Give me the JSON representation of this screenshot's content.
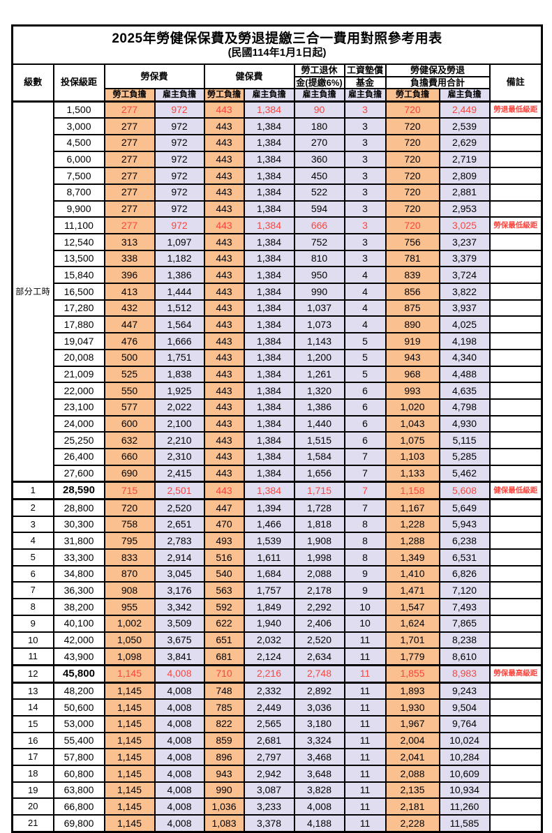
{
  "page": {
    "title_line1": "2025年勞健保保費及勞退提繳三合一費用對照參考用表",
    "title_line2": "(民國114年1月1日起)"
  },
  "table": {
    "headers": {
      "level": "級數",
      "bracket": "投保級距",
      "labor_fee": "勞保費",
      "health_fee": "健保費",
      "pension_line1": "勞工退休",
      "pension_line2": "金(提繳6%)",
      "wage_fund_line1": "工資墊償",
      "wage_fund_line2": "基金",
      "total_line1": "勞健保及勞退",
      "total_line2": "負擔費用合計",
      "remark": "備註",
      "worker": "勞工負擔",
      "employer": "雇主負擔"
    },
    "part_time_group": {
      "label": "部分工時",
      "row_span": 23
    },
    "legend_colors": {
      "worker_bg": "#FAC090",
      "employer_bg": "#E0DDF0",
      "highlight_red": "#F8463E",
      "grid": "#000000"
    },
    "rows": [
      {
        "level": "",
        "bracket": "1,500",
        "values": [
          "277",
          "972",
          "443",
          "1,384",
          "90",
          "3",
          "720",
          "2,449"
        ],
        "remark": "勞退最低級距",
        "highlight": true,
        "emphasis": false
      },
      {
        "level": "",
        "bracket": "3,000",
        "values": [
          "277",
          "972",
          "443",
          "1,384",
          "180",
          "3",
          "720",
          "2,539"
        ],
        "remark": "",
        "highlight": false,
        "emphasis": false
      },
      {
        "level": "",
        "bracket": "4,500",
        "values": [
          "277",
          "972",
          "443",
          "1,384",
          "270",
          "3",
          "720",
          "2,629"
        ],
        "remark": "",
        "highlight": false,
        "emphasis": false
      },
      {
        "level": "",
        "bracket": "6,000",
        "values": [
          "277",
          "972",
          "443",
          "1,384",
          "360",
          "3",
          "720",
          "2,719"
        ],
        "remark": "",
        "highlight": false,
        "emphasis": false
      },
      {
        "level": "",
        "bracket": "7,500",
        "values": [
          "277",
          "972",
          "443",
          "1,384",
          "450",
          "3",
          "720",
          "2,809"
        ],
        "remark": "",
        "highlight": false,
        "emphasis": false
      },
      {
        "level": "",
        "bracket": "8,700",
        "values": [
          "277",
          "972",
          "443",
          "1,384",
          "522",
          "3",
          "720",
          "2,881"
        ],
        "remark": "",
        "highlight": false,
        "emphasis": false
      },
      {
        "level": "",
        "bracket": "9,900",
        "values": [
          "277",
          "972",
          "443",
          "1,384",
          "594",
          "3",
          "720",
          "2,953"
        ],
        "remark": "",
        "highlight": false,
        "emphasis": false
      },
      {
        "level": "",
        "bracket": "11,100",
        "values": [
          "277",
          "972",
          "443",
          "1,384",
          "666",
          "3",
          "720",
          "3,025"
        ],
        "remark": "勞保最低級距",
        "highlight": true,
        "emphasis": false
      },
      {
        "level": "",
        "bracket": "12,540",
        "values": [
          "313",
          "1,097",
          "443",
          "1,384",
          "752",
          "3",
          "756",
          "3,237"
        ],
        "remark": "",
        "highlight": false,
        "emphasis": false
      },
      {
        "level": "",
        "bracket": "13,500",
        "values": [
          "338",
          "1,182",
          "443",
          "1,384",
          "810",
          "3",
          "781",
          "3,379"
        ],
        "remark": "",
        "highlight": false,
        "emphasis": false
      },
      {
        "level": "",
        "bracket": "15,840",
        "values": [
          "396",
          "1,386",
          "443",
          "1,384",
          "950",
          "4",
          "839",
          "3,724"
        ],
        "remark": "",
        "highlight": false,
        "emphasis": false
      },
      {
        "level": "",
        "bracket": "16,500",
        "values": [
          "413",
          "1,444",
          "443",
          "1,384",
          "990",
          "4",
          "856",
          "3,822"
        ],
        "remark": "",
        "highlight": false,
        "emphasis": false
      },
      {
        "level": "",
        "bracket": "17,280",
        "values": [
          "432",
          "1,512",
          "443",
          "1,384",
          "1,037",
          "4",
          "875",
          "3,937"
        ],
        "remark": "",
        "highlight": false,
        "emphasis": false
      },
      {
        "level": "",
        "bracket": "17,880",
        "values": [
          "447",
          "1,564",
          "443",
          "1,384",
          "1,073",
          "4",
          "890",
          "4,025"
        ],
        "remark": "",
        "highlight": false,
        "emphasis": false
      },
      {
        "level": "",
        "bracket": "19,047",
        "values": [
          "476",
          "1,666",
          "443",
          "1,384",
          "1,143",
          "5",
          "919",
          "4,198"
        ],
        "remark": "",
        "highlight": false,
        "emphasis": false
      },
      {
        "level": "",
        "bracket": "20,008",
        "values": [
          "500",
          "1,751",
          "443",
          "1,384",
          "1,200",
          "5",
          "943",
          "4,340"
        ],
        "remark": "",
        "highlight": false,
        "emphasis": false
      },
      {
        "level": "",
        "bracket": "21,009",
        "values": [
          "525",
          "1,838",
          "443",
          "1,384",
          "1,261",
          "5",
          "968",
          "4,488"
        ],
        "remark": "",
        "highlight": false,
        "emphasis": false
      },
      {
        "level": "",
        "bracket": "22,000",
        "values": [
          "550",
          "1,925",
          "443",
          "1,384",
          "1,320",
          "6",
          "993",
          "4,635"
        ],
        "remark": "",
        "highlight": false,
        "emphasis": false
      },
      {
        "level": "",
        "bracket": "23,100",
        "values": [
          "577",
          "2,022",
          "443",
          "1,384",
          "1,386",
          "6",
          "1,020",
          "4,798"
        ],
        "remark": "",
        "highlight": false,
        "emphasis": false
      },
      {
        "level": "",
        "bracket": "24,000",
        "values": [
          "600",
          "2,100",
          "443",
          "1,384",
          "1,440",
          "6",
          "1,043",
          "4,930"
        ],
        "remark": "",
        "highlight": false,
        "emphasis": false
      },
      {
        "level": "",
        "bracket": "25,250",
        "values": [
          "632",
          "2,210",
          "443",
          "1,384",
          "1,515",
          "6",
          "1,075",
          "5,115"
        ],
        "remark": "",
        "highlight": false,
        "emphasis": false
      },
      {
        "level": "",
        "bracket": "26,400",
        "values": [
          "660",
          "2,310",
          "443",
          "1,384",
          "1,584",
          "7",
          "1,103",
          "5,285"
        ],
        "remark": "",
        "highlight": false,
        "emphasis": false
      },
      {
        "level": "",
        "bracket": "27,600",
        "values": [
          "690",
          "2,415",
          "443",
          "1,384",
          "1,656",
          "7",
          "1,133",
          "5,462"
        ],
        "remark": "",
        "highlight": false,
        "emphasis": false
      },
      {
        "level": "1",
        "bracket": "28,590",
        "values": [
          "715",
          "2,501",
          "443",
          "1,384",
          "1,715",
          "7",
          "1,158",
          "5,608"
        ],
        "remark": "健保最低級距",
        "highlight": true,
        "emphasis": true
      },
      {
        "level": "2",
        "bracket": "28,800",
        "values": [
          "720",
          "2,520",
          "447",
          "1,394",
          "1,728",
          "7",
          "1,167",
          "5,649"
        ],
        "remark": "",
        "highlight": false,
        "emphasis": false
      },
      {
        "level": "3",
        "bracket": "30,300",
        "values": [
          "758",
          "2,651",
          "470",
          "1,466",
          "1,818",
          "8",
          "1,228",
          "5,943"
        ],
        "remark": "",
        "highlight": false,
        "emphasis": false
      },
      {
        "level": "4",
        "bracket": "31,800",
        "values": [
          "795",
          "2,783",
          "493",
          "1,539",
          "1,908",
          "8",
          "1,288",
          "6,238"
        ],
        "remark": "",
        "highlight": false,
        "emphasis": false
      },
      {
        "level": "5",
        "bracket": "33,300",
        "values": [
          "833",
          "2,914",
          "516",
          "1,611",
          "1,998",
          "8",
          "1,349",
          "6,531"
        ],
        "remark": "",
        "highlight": false,
        "emphasis": false
      },
      {
        "level": "6",
        "bracket": "34,800",
        "values": [
          "870",
          "3,045",
          "540",
          "1,684",
          "2,088",
          "9",
          "1,410",
          "6,826"
        ],
        "remark": "",
        "highlight": false,
        "emphasis": false
      },
      {
        "level": "7",
        "bracket": "36,300",
        "values": [
          "908",
          "3,176",
          "563",
          "1,757",
          "2,178",
          "9",
          "1,471",
          "7,120"
        ],
        "remark": "",
        "highlight": false,
        "emphasis": false
      },
      {
        "level": "8",
        "bracket": "38,200",
        "values": [
          "955",
          "3,342",
          "592",
          "1,849",
          "2,292",
          "10",
          "1,547",
          "7,493"
        ],
        "remark": "",
        "highlight": false,
        "emphasis": false
      },
      {
        "level": "9",
        "bracket": "40,100",
        "values": [
          "1,002",
          "3,509",
          "622",
          "1,940",
          "2,406",
          "10",
          "1,624",
          "7,865"
        ],
        "remark": "",
        "highlight": false,
        "emphasis": false
      },
      {
        "level": "10",
        "bracket": "42,000",
        "values": [
          "1,050",
          "3,675",
          "651",
          "2,032",
          "2,520",
          "11",
          "1,701",
          "8,238"
        ],
        "remark": "",
        "highlight": false,
        "emphasis": false
      },
      {
        "level": "11",
        "bracket": "43,900",
        "values": [
          "1,098",
          "3,841",
          "681",
          "2,124",
          "2,634",
          "11",
          "1,779",
          "8,610"
        ],
        "remark": "",
        "highlight": false,
        "emphasis": false
      },
      {
        "level": "12",
        "bracket": "45,800",
        "values": [
          "1,145",
          "4,008",
          "710",
          "2,216",
          "2,748",
          "11",
          "1,855",
          "8,983"
        ],
        "remark": "勞保最高級距",
        "highlight": true,
        "emphasis": true
      },
      {
        "level": "13",
        "bracket": "48,200",
        "values": [
          "1,145",
          "4,008",
          "748",
          "2,332",
          "2,892",
          "11",
          "1,893",
          "9,243"
        ],
        "remark": "",
        "highlight": false,
        "emphasis": false
      },
      {
        "level": "14",
        "bracket": "50,600",
        "values": [
          "1,145",
          "4,008",
          "785",
          "2,449",
          "3,036",
          "11",
          "1,930",
          "9,504"
        ],
        "remark": "",
        "highlight": false,
        "emphasis": false
      },
      {
        "level": "15",
        "bracket": "53,000",
        "values": [
          "1,145",
          "4,008",
          "822",
          "2,565",
          "3,180",
          "11",
          "1,967",
          "9,764"
        ],
        "remark": "",
        "highlight": false,
        "emphasis": false
      },
      {
        "level": "16",
        "bracket": "55,400",
        "values": [
          "1,145",
          "4,008",
          "859",
          "2,681",
          "3,324",
          "11",
          "2,004",
          "10,024"
        ],
        "remark": "",
        "highlight": false,
        "emphasis": false
      },
      {
        "level": "17",
        "bracket": "57,800",
        "values": [
          "1,145",
          "4,008",
          "896",
          "2,797",
          "3,468",
          "11",
          "2,041",
          "10,284"
        ],
        "remark": "",
        "highlight": false,
        "emphasis": false
      },
      {
        "level": "18",
        "bracket": "60,800",
        "values": [
          "1,145",
          "4,008",
          "943",
          "2,942",
          "3,648",
          "11",
          "2,088",
          "10,609"
        ],
        "remark": "",
        "highlight": false,
        "emphasis": false
      },
      {
        "level": "19",
        "bracket": "63,800",
        "values": [
          "1,145",
          "4,008",
          "990",
          "3,087",
          "3,828",
          "11",
          "2,135",
          "10,934"
        ],
        "remark": "",
        "highlight": false,
        "emphasis": false
      },
      {
        "level": "20",
        "bracket": "66,800",
        "values": [
          "1,145",
          "4,008",
          "1,036",
          "3,233",
          "4,008",
          "11",
          "2,181",
          "11,260"
        ],
        "remark": "",
        "highlight": false,
        "emphasis": false
      },
      {
        "level": "21",
        "bracket": "69,800",
        "values": [
          "1,145",
          "4,008",
          "1,083",
          "3,378",
          "4,188",
          "11",
          "2,228",
          "11,585"
        ],
        "remark": "",
        "highlight": false,
        "emphasis": false
      }
    ]
  }
}
